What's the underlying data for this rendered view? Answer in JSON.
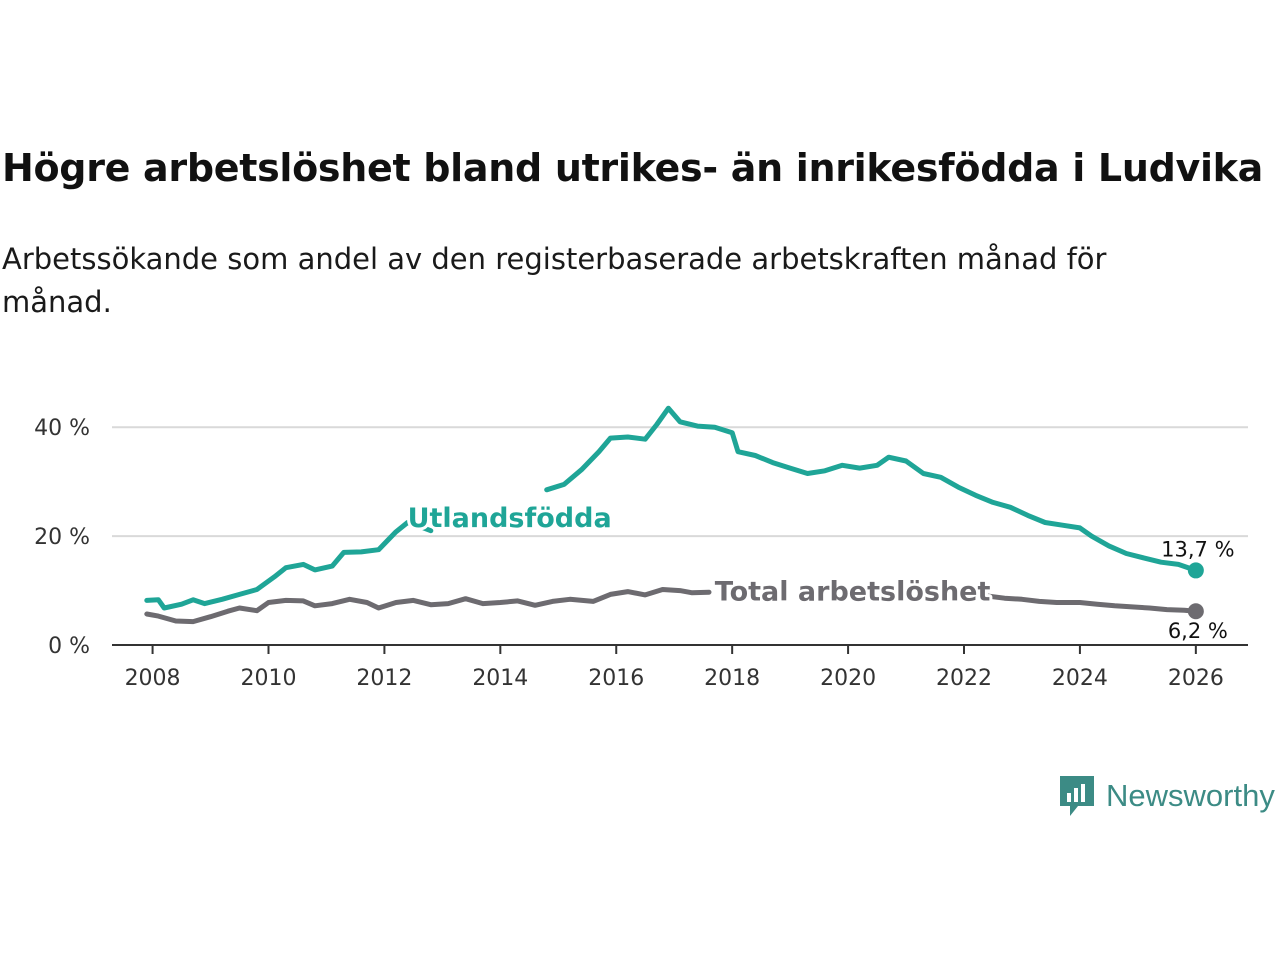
{
  "title": "Högre arbetslöshet bland utrikes- än inrikesfödda i Ludvika",
  "subtitle": "Arbetssökande som andel av den registerbaserade arbetskraften månad för månad.",
  "brand": "Newsworthy",
  "colors": {
    "foreign": "#1fa597",
    "total": "#6d6b70",
    "brand": "#3c8b85"
  },
  "chart_data": {
    "type": "line",
    "title": "Högre arbetslöshet bland utrikes- än inrikesfödda i Ludvika",
    "xlabel": "",
    "ylabel": "",
    "xlim": [
      2007.3,
      2026.9
    ],
    "ylim": [
      0,
      45
    ],
    "x_ticks": [
      2008,
      2010,
      2012,
      2014,
      2016,
      2018,
      2020,
      2022,
      2024,
      2026
    ],
    "x_tick_labels": [
      "2008",
      "2010",
      "2012",
      "2014",
      "2016",
      "2018",
      "2020",
      "2022",
      "2024",
      "2026"
    ],
    "y_ticks": [
      0,
      20,
      40
    ],
    "y_tick_labels": [
      "0 %",
      "20 %",
      "40 %"
    ],
    "grid": true,
    "series": [
      {
        "name": "Utlandsfödda",
        "color": "#1fa597",
        "end_label": "13,7 %",
        "points": [
          [
            2007.9,
            8.2
          ],
          [
            2008.1,
            8.3
          ],
          [
            2008.2,
            6.8
          ],
          [
            2008.5,
            7.5
          ],
          [
            2008.7,
            8.3
          ],
          [
            2008.9,
            7.6
          ],
          [
            2009.2,
            8.4
          ],
          [
            2009.5,
            9.3
          ],
          [
            2009.8,
            10.2
          ],
          [
            2010.1,
            12.5
          ],
          [
            2010.3,
            14.2
          ],
          [
            2010.6,
            14.8
          ],
          [
            2010.8,
            13.8
          ],
          [
            2011.1,
            14.5
          ],
          [
            2011.3,
            17.0
          ],
          [
            2011.6,
            17.1
          ],
          [
            2011.9,
            17.5
          ],
          [
            2012.2,
            20.8
          ],
          [
            2012.4,
            22.5
          ],
          [
            2012.6,
            21.8
          ],
          [
            2012.8,
            21.0
          ],
          [
            2014.8,
            28.5
          ],
          [
            2015.1,
            29.5
          ],
          [
            2015.4,
            32.2
          ],
          [
            2015.7,
            35.5
          ],
          [
            2015.9,
            38.0
          ],
          [
            2016.2,
            38.2
          ],
          [
            2016.5,
            37.8
          ],
          [
            2016.7,
            40.5
          ],
          [
            2016.9,
            43.5
          ],
          [
            2017.1,
            41.0
          ],
          [
            2017.4,
            40.2
          ],
          [
            2017.7,
            40.0
          ],
          [
            2018.0,
            39.0
          ],
          [
            2018.1,
            35.5
          ],
          [
            2018.4,
            34.8
          ],
          [
            2018.7,
            33.5
          ],
          [
            2019.0,
            32.5
          ],
          [
            2019.3,
            31.5
          ],
          [
            2019.6,
            32.0
          ],
          [
            2019.9,
            33.0
          ],
          [
            2020.2,
            32.5
          ],
          [
            2020.5,
            33.0
          ],
          [
            2020.7,
            34.5
          ],
          [
            2021.0,
            33.8
          ],
          [
            2021.3,
            31.5
          ],
          [
            2021.6,
            30.8
          ],
          [
            2021.9,
            29.0
          ],
          [
            2022.2,
            27.5
          ],
          [
            2022.5,
            26.2
          ],
          [
            2022.8,
            25.3
          ],
          [
            2023.1,
            23.8
          ],
          [
            2023.4,
            22.5
          ],
          [
            2023.7,
            22.0
          ],
          [
            2024.0,
            21.5
          ],
          [
            2024.2,
            20.0
          ],
          [
            2024.5,
            18.2
          ],
          [
            2024.8,
            16.8
          ],
          [
            2025.1,
            16.0
          ],
          [
            2025.4,
            15.2
          ],
          [
            2025.7,
            14.8
          ],
          [
            2026.0,
            13.7
          ]
        ]
      },
      {
        "name": "Total arbetslöshet",
        "color": "#6d6b70",
        "end_label": "6,2 %",
        "points": [
          [
            2007.9,
            5.7
          ],
          [
            2008.1,
            5.3
          ],
          [
            2008.4,
            4.4
          ],
          [
            2008.7,
            4.3
          ],
          [
            2009.0,
            5.2
          ],
          [
            2009.3,
            6.2
          ],
          [
            2009.5,
            6.8
          ],
          [
            2009.8,
            6.3
          ],
          [
            2010.0,
            7.8
          ],
          [
            2010.3,
            8.2
          ],
          [
            2010.6,
            8.1
          ],
          [
            2010.8,
            7.2
          ],
          [
            2011.1,
            7.6
          ],
          [
            2011.4,
            8.4
          ],
          [
            2011.7,
            7.8
          ],
          [
            2011.9,
            6.8
          ],
          [
            2012.2,
            7.8
          ],
          [
            2012.5,
            8.2
          ],
          [
            2012.8,
            7.4
          ],
          [
            2013.1,
            7.6
          ],
          [
            2013.4,
            8.5
          ],
          [
            2013.7,
            7.6
          ],
          [
            2014.0,
            7.8
          ],
          [
            2014.3,
            8.1
          ],
          [
            2014.6,
            7.3
          ],
          [
            2014.9,
            8.0
          ],
          [
            2015.2,
            8.4
          ],
          [
            2015.6,
            8.0
          ],
          [
            2015.9,
            9.3
          ],
          [
            2016.2,
            9.8
          ],
          [
            2016.5,
            9.2
          ],
          [
            2016.8,
            10.2
          ],
          [
            2017.1,
            10.0
          ],
          [
            2017.3,
            9.6
          ],
          [
            2017.6,
            9.7
          ],
          [
            2022.4,
            9.0
          ],
          [
            2022.7,
            8.6
          ],
          [
            2023.0,
            8.4
          ],
          [
            2023.3,
            8.0
          ],
          [
            2023.6,
            7.8
          ],
          [
            2024.0,
            7.8
          ],
          [
            2024.3,
            7.5
          ],
          [
            2024.6,
            7.2
          ],
          [
            2024.9,
            7.0
          ],
          [
            2025.2,
            6.8
          ],
          [
            2025.5,
            6.5
          ],
          [
            2025.8,
            6.4
          ],
          [
            2026.0,
            6.2
          ]
        ]
      }
    ]
  }
}
